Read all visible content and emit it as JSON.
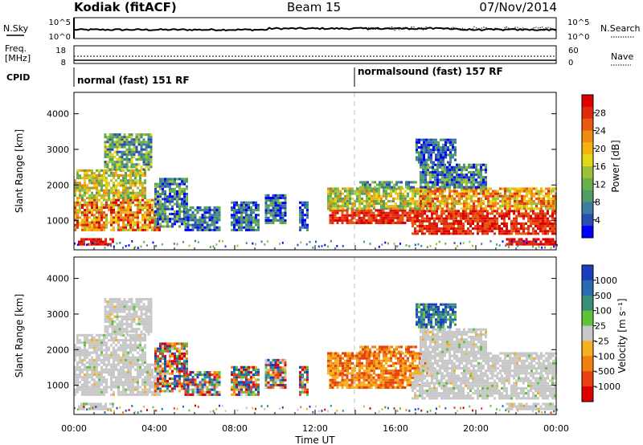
{
  "header": {
    "station": "Kodiak (fitACF)",
    "beam": "Beam 15",
    "date": "07/Nov/2014"
  },
  "status": {
    "nsky_label": "N.Sky",
    "nsearch_label": "N.Search",
    "noise_ticks_left": [
      "10^5",
      "10^0"
    ],
    "noise_ticks_right": [
      "10^5",
      "10^0"
    ],
    "freq_label_1": "Freq.",
    "freq_label_2": "[MHz]",
    "freq_ticks": [
      "18",
      "8"
    ],
    "nave_label": "Nave",
    "nave_ticks": [
      "60",
      "0"
    ],
    "cpid_label": "CPID",
    "cpid_segments": [
      {
        "label": "normal (fast) 151 RF",
        "start_hour": 0,
        "end_hour": 14.0
      },
      {
        "label": "normalsound (fast) 157 RF",
        "start_hour": 14.0,
        "end_hour": 24
      }
    ]
  },
  "chart_data": [
    {
      "type": "heatmap",
      "title": "Power",
      "ylabel": "Slant Range [km]",
      "xlabel": "",
      "xlim": [
        0,
        24
      ],
      "ylim": [
        180,
        4600
      ],
      "yticks": [
        "1000",
        "2000",
        "3000",
        "4000"
      ],
      "colorbar_label": "Power [dB]",
      "colorbar_ticks": [
        "28",
        "24",
        "20",
        "16",
        "12",
        "8",
        "4"
      ],
      "colorscale": [
        "#0000ff",
        "#2a4db4",
        "#3c7da0",
        "#4f9c66",
        "#6ab04a",
        "#9cc23c",
        "#e5d619",
        "#f5b30f",
        "#f08a12",
        "#e85810",
        "#e02a10",
        "#dd0000"
      ]
    },
    {
      "type": "heatmap",
      "title": "Velocity",
      "ylabel": "Slant Range [km]",
      "xlabel": "Time UT",
      "xlim": [
        0,
        24
      ],
      "ylim": [
        180,
        4600
      ],
      "yticks": [
        "1000",
        "2000",
        "3000",
        "4000"
      ],
      "xticks": [
        "00:00",
        "04:00",
        "08:00",
        "12:00",
        "16:00",
        "20:00",
        "00:00"
      ],
      "colorbar_label": "Velocity [m s⁻¹]",
      "colorbar_ticks": [
        "1000",
        "500",
        "100",
        "25",
        "-25",
        "-100",
        "-500",
        "-1000"
      ],
      "colorscale": [
        "#1a3ec0",
        "#2a6ab0",
        "#3a8f7a",
        "#5fc23a",
        "#c8c8c8",
        "#f5b020",
        "#f08010",
        "#e84010",
        "#dd0000"
      ]
    }
  ],
  "colors": {
    "ground_scatter": "#c8c8c8",
    "divider": "#c0c0c0"
  }
}
